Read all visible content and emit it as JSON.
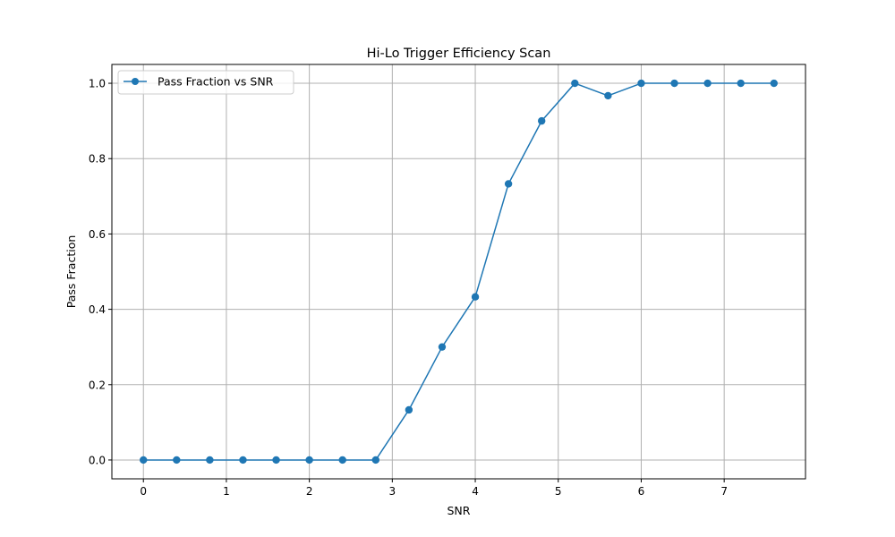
{
  "chart_data": {
    "type": "line",
    "title": "Hi-Lo Trigger Efficiency Scan",
    "xlabel": "SNR",
    "ylabel": "Pass Fraction",
    "xlim": [
      -0.38,
      7.98
    ],
    "ylim": [
      -0.05,
      1.05
    ],
    "xticks": [
      0,
      1,
      2,
      3,
      4,
      5,
      6,
      7
    ],
    "yticks": [
      0.0,
      0.2,
      0.4,
      0.6,
      0.8,
      1.0
    ],
    "xtick_labels": [
      "0",
      "1",
      "2",
      "3",
      "4",
      "5",
      "6",
      "7"
    ],
    "ytick_labels": [
      "0.0",
      "0.2",
      "0.4",
      "0.6",
      "0.8",
      "1.0"
    ],
    "grid": true,
    "legend_position": "top-left",
    "series": [
      {
        "name": "Pass Fraction vs SNR",
        "color": "#1f77b4",
        "marker": "circle",
        "x": [
          0,
          0.4,
          0.8,
          1.2,
          1.6,
          2.0,
          2.4,
          2.8,
          3.2,
          3.6,
          4.0,
          4.4,
          4.8,
          5.2,
          5.6,
          6.0,
          6.4,
          6.8,
          7.2,
          7.6
        ],
        "y": [
          0,
          0,
          0,
          0,
          0,
          0,
          0,
          0,
          0.133,
          0.3,
          0.433,
          0.733,
          0.9,
          1.0,
          0.967,
          1.0,
          1.0,
          1.0,
          1.0,
          1.0
        ]
      }
    ]
  }
}
